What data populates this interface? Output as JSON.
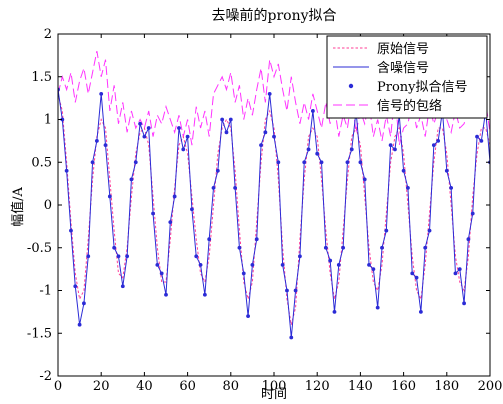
{
  "chart_data": {
    "type": "line",
    "title": "去噪前的prony拟合",
    "xlabel": "时间",
    "ylabel": "幅值/A",
    "xlim": [
      0,
      200
    ],
    "ylim": [
      -2,
      2
    ],
    "xticks": [
      0,
      20,
      40,
      60,
      80,
      100,
      120,
      140,
      160,
      180,
      200
    ],
    "yticks": [
      -2,
      -1.5,
      -1,
      -0.5,
      0,
      0.5,
      1,
      1.5,
      2
    ],
    "grid": false,
    "legend_position": "top-right",
    "series": [
      {
        "name": "原始信号",
        "style": "dotted",
        "color": "#ff3c96",
        "x": [
          0,
          2,
          4,
          6,
          8,
          10,
          12,
          14,
          16,
          18,
          20,
          22,
          24,
          26,
          28,
          30,
          32,
          34,
          36,
          38,
          40,
          42,
          44,
          46,
          48,
          50,
          52,
          54,
          56,
          58,
          60,
          62,
          64,
          66,
          68,
          70,
          72,
          74,
          76,
          78,
          80,
          82,
          84,
          86,
          88,
          90,
          92,
          94,
          96,
          98,
          100,
          102,
          104,
          106,
          108,
          110,
          112,
          114,
          116,
          118,
          120,
          122,
          124,
          126,
          128,
          130,
          132,
          134,
          136,
          138,
          140,
          142,
          144,
          146,
          148,
          150,
          152,
          154,
          156,
          158,
          160,
          162,
          164,
          166,
          168,
          170,
          172,
          174,
          176,
          178,
          180,
          182,
          184,
          186,
          188,
          190,
          192,
          194,
          196,
          198,
          200
        ],
        "y": [
          1.3,
          1.1,
          0.5,
          -0.2,
          -0.8,
          -1.1,
          -1.0,
          -0.4,
          0.3,
          0.8,
          1.0,
          0.9,
          0.3,
          -0.3,
          -0.8,
          -0.85,
          -0.5,
          0.1,
          0.6,
          0.85,
          0.9,
          0.7,
          0.1,
          -0.5,
          -0.9,
          -0.9,
          -0.4,
          0.2,
          0.7,
          0.8,
          0.6,
          0.1,
          -0.4,
          -0.8,
          -0.9,
          -0.6,
          0.0,
          0.6,
          0.9,
          1.0,
          0.9,
          0.4,
          -0.3,
          -0.9,
          -1.1,
          -0.9,
          -0.2,
          0.5,
          1.0,
          1.1,
          0.9,
          0.3,
          -0.5,
          -1.1,
          -1.4,
          -1.2,
          -0.4,
          0.3,
          0.8,
          0.9,
          0.8,
          0.3,
          -0.3,
          -0.8,
          -1.1,
          -0.9,
          -0.3,
          0.3,
          0.8,
          0.9,
          0.7,
          0.1,
          -0.5,
          -0.9,
          -1.0,
          -0.7,
          -0.1,
          0.5,
          0.8,
          0.9,
          0.6,
          0.0,
          -0.6,
          -1.0,
          -1.1,
          -0.7,
          -0.1,
          0.5,
          0.9,
          0.9,
          0.6,
          0.0,
          -0.6,
          -0.9,
          -1.0,
          -0.6,
          0.1,
          0.6,
          0.9,
          0.9,
          0.7
        ]
      },
      {
        "name": "含噪信号",
        "style": "solid",
        "color": "#2b2bd6",
        "x": [
          0,
          2,
          4,
          6,
          8,
          10,
          12,
          14,
          16,
          18,
          20,
          22,
          24,
          26,
          28,
          30,
          32,
          34,
          36,
          38,
          40,
          42,
          44,
          46,
          48,
          50,
          52,
          54,
          56,
          58,
          60,
          62,
          64,
          66,
          68,
          70,
          72,
          74,
          76,
          78,
          80,
          82,
          84,
          86,
          88,
          90,
          92,
          94,
          96,
          98,
          100,
          102,
          104,
          106,
          108,
          110,
          112,
          114,
          116,
          118,
          120,
          122,
          124,
          126,
          128,
          130,
          132,
          134,
          136,
          138,
          140,
          142,
          144,
          146,
          148,
          150,
          152,
          154,
          156,
          158,
          160,
          162,
          164,
          166,
          168,
          170,
          172,
          174,
          176,
          178,
          180,
          182,
          184,
          186,
          188,
          190,
          192,
          194,
          196,
          198,
          200
        ],
        "y": [
          1.35,
          1.0,
          0.4,
          -0.3,
          -0.95,
          -1.4,
          -1.15,
          -0.6,
          0.5,
          0.75,
          1.3,
          0.7,
          0.1,
          -0.5,
          -0.6,
          -0.95,
          -0.6,
          0.3,
          0.5,
          0.95,
          0.8,
          0.9,
          -0.1,
          -0.7,
          -0.8,
          -1.05,
          -0.2,
          0.1,
          0.9,
          0.65,
          0.8,
          -0.05,
          -0.6,
          -0.7,
          -1.05,
          -0.4,
          0.2,
          0.4,
          1.0,
          0.85,
          1.0,
          0.2,
          -0.5,
          -0.8,
          -1.3,
          -0.7,
          -0.4,
          0.7,
          0.85,
          1.3,
          0.8,
          0.5,
          -0.7,
          -1.0,
          -1.55,
          -1.0,
          -0.6,
          0.5,
          0.65,
          1.1,
          0.6,
          0.5,
          -0.5,
          -0.65,
          -1.25,
          -0.7,
          -0.5,
          0.5,
          0.65,
          1.1,
          0.5,
          0.3,
          -0.7,
          -0.75,
          -1.2,
          -0.5,
          -0.3,
          0.7,
          0.65,
          1.05,
          0.4,
          0.2,
          -0.8,
          -0.85,
          -1.25,
          -0.5,
          -0.3,
          0.7,
          0.75,
          1.1,
          0.4,
          0.2,
          -0.8,
          -0.75,
          -1.15,
          -0.4,
          -0.1,
          0.8,
          0.75,
          1.1,
          0.5
        ]
      },
      {
        "name": "Prony拟合信号",
        "style": "markers",
        "color": "#2b2bd6",
        "x": [
          0,
          2,
          4,
          6,
          8,
          10,
          12,
          14,
          16,
          18,
          20,
          22,
          24,
          26,
          28,
          30,
          32,
          34,
          36,
          38,
          40,
          42,
          44,
          46,
          48,
          50,
          52,
          54,
          56,
          58,
          60,
          62,
          64,
          66,
          68,
          70,
          72,
          74,
          76,
          78,
          80,
          82,
          84,
          86,
          88,
          90,
          92,
          94,
          96,
          98,
          100,
          102,
          104,
          106,
          108,
          110,
          112,
          114,
          116,
          118,
          120,
          122,
          124,
          126,
          128,
          130,
          132,
          134,
          136,
          138,
          140,
          142,
          144,
          146,
          148,
          150,
          152,
          154,
          156,
          158,
          160,
          162,
          164,
          166,
          168,
          170,
          172,
          174,
          176,
          178,
          180,
          182,
          184,
          186,
          188,
          190,
          192,
          194,
          196,
          198,
          200
        ],
        "y": [
          1.35,
          1.0,
          0.4,
          -0.3,
          -0.95,
          -1.4,
          -1.15,
          -0.6,
          0.5,
          0.75,
          1.3,
          0.7,
          0.1,
          -0.5,
          -0.6,
          -0.95,
          -0.6,
          0.3,
          0.5,
          0.95,
          0.8,
          0.9,
          -0.1,
          -0.7,
          -0.8,
          -1.05,
          -0.2,
          0.1,
          0.9,
          0.65,
          0.8,
          -0.05,
          -0.6,
          -0.7,
          -1.05,
          -0.4,
          0.2,
          0.4,
          1.0,
          0.85,
          1.0,
          0.2,
          -0.5,
          -0.8,
          -1.3,
          -0.7,
          -0.4,
          0.7,
          0.85,
          1.3,
          0.8,
          0.5,
          -0.7,
          -1.0,
          -1.55,
          -1.0,
          -0.6,
          0.5,
          0.65,
          1.1,
          0.6,
          0.5,
          -0.5,
          -0.65,
          -1.25,
          -0.7,
          -0.5,
          0.5,
          0.65,
          1.1,
          0.5,
          0.3,
          -0.7,
          -0.75,
          -1.2,
          -0.5,
          -0.3,
          0.7,
          0.65,
          1.05,
          0.4,
          0.2,
          -0.8,
          -0.85,
          -1.25,
          -0.5,
          -0.3,
          0.7,
          0.75,
          1.1,
          0.4,
          0.2,
          -0.8,
          -0.75,
          -1.15,
          -0.4,
          -0.1,
          0.8,
          0.75,
          1.1,
          0.5
        ]
      },
      {
        "name": "信号的包络",
        "style": "dashed",
        "color": "#ff33ff",
        "x": [
          0,
          2,
          4,
          6,
          8,
          10,
          12,
          14,
          16,
          18,
          20,
          22,
          24,
          26,
          28,
          30,
          32,
          34,
          36,
          38,
          40,
          42,
          44,
          46,
          48,
          50,
          52,
          54,
          56,
          58,
          60,
          62,
          64,
          66,
          68,
          70,
          72,
          74,
          76,
          78,
          80,
          82,
          84,
          86,
          88,
          90,
          92,
          94,
          96,
          98,
          100,
          102,
          104,
          106,
          108,
          110,
          112,
          114,
          116,
          118,
          120,
          122,
          124,
          126,
          128,
          130,
          132,
          134,
          136,
          138,
          140,
          142,
          144,
          146,
          148,
          150,
          152,
          154,
          156,
          158,
          160,
          162,
          164,
          166,
          168,
          170,
          172,
          174,
          176,
          178,
          180,
          182,
          184,
          186,
          188,
          190,
          192,
          194,
          196,
          198,
          200
        ],
        "y": [
          1.3,
          1.5,
          1.35,
          1.55,
          1.2,
          1.45,
          1.6,
          1.3,
          1.55,
          1.8,
          1.5,
          1.7,
          1.1,
          1.4,
          0.95,
          1.2,
          0.85,
          1.1,
          0.9,
          1.0,
          0.9,
          1.1,
          0.8,
          1.05,
          0.95,
          1.15,
          1.0,
          0.85,
          1.05,
          0.8,
          1.0,
          0.7,
          1.15,
          0.9,
          1.1,
          0.8,
          1.3,
          1.4,
          1.5,
          1.35,
          1.55,
          1.2,
          1.4,
          1.0,
          1.25,
          1.05,
          1.35,
          1.6,
          1.2,
          1.7,
          1.5,
          1.65,
          1.35,
          1.1,
          1.5,
          1.2,
          0.95,
          1.2,
          1.0,
          1.3,
          1.1,
          0.9,
          1.2,
          0.95,
          1.15,
          0.8,
          1.05,
          0.9,
          1.25,
          0.85,
          1.1,
          0.95,
          1.2,
          0.8,
          1.0,
          0.75,
          1.05,
          0.8,
          1.3,
          0.7,
          0.9,
          0.95,
          1.2,
          0.9,
          1.05,
          0.8,
          1.15,
          0.95,
          1.1,
          1.2,
          1.0,
          0.85,
          1.1,
          0.9,
          0.95,
          1.15,
          1.35,
          1.1,
          1.5,
          1.2,
          0.85
        ]
      }
    ]
  }
}
